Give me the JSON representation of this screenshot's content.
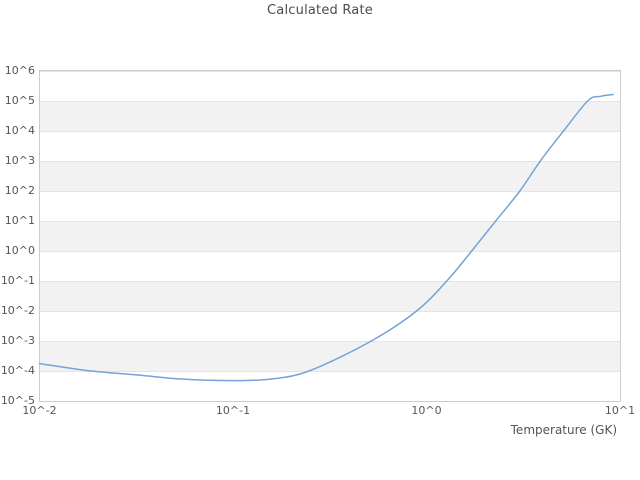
{
  "title": "Calculated Rate",
  "axes": {
    "x_label": "Temperature (GK)",
    "x_ticks": [
      "10^-2",
      "10^-1",
      "10^0",
      "10^1"
    ],
    "y_ticks": [
      "10^6",
      "10^5",
      "10^4",
      "10^3",
      "10^2",
      "10^1",
      "10^0",
      "10^-1",
      "10^-2",
      "10^-3",
      "10^-4",
      "10^-5"
    ]
  },
  "colors": {
    "line": "#74a3d8",
    "band_gray": "#f2f2f2",
    "gridline": "#e4e4e4",
    "plot_border": "#cccccc",
    "text": "#555555",
    "title_text": "#4d4d4d",
    "background": "#ffffff"
  },
  "chart_data": {
    "type": "line",
    "title": "Calculated Rate",
    "xlabel": "Temperature (GK)",
    "ylabel": "",
    "x_scale": "log",
    "y_scale": "log",
    "xlim": [
      0.01,
      10
    ],
    "ylim": [
      1e-05,
      1000000
    ],
    "x_tick_labels": [
      "10^-2",
      "10^-1",
      "10^0",
      "10^1"
    ],
    "y_tick_labels": [
      "10^6",
      "10^5",
      "10^4",
      "10^3",
      "10^2",
      "10^1",
      "10^0",
      "10^-1",
      "10^-2",
      "10^-3",
      "10^-4",
      "10^-5"
    ],
    "grid": "horizontal decade gridlines with alternating white/gray bands",
    "legend": "none",
    "series": [
      {
        "name": "Calculated Rate",
        "x": [
          0.01,
          0.0176,
          0.0333,
          0.0537,
          0.1,
          0.158,
          0.251,
          0.524,
          0.895,
          1.28,
          1.72,
          2.29,
          3.05,
          3.89,
          5.13,
          6.84,
          7.94,
          9.21
        ],
        "y": [
          0.00017,
          0.0001,
          6.9e-05,
          5.2e-05,
          4.6e-05,
          5.2e-05,
          0.0001,
          0.001,
          0.01,
          0.1,
          1.0,
          10.0,
          100.0,
          1000.0,
          10000.0,
          100000.0,
          138000.0,
          158000.0
        ]
      }
    ]
  }
}
